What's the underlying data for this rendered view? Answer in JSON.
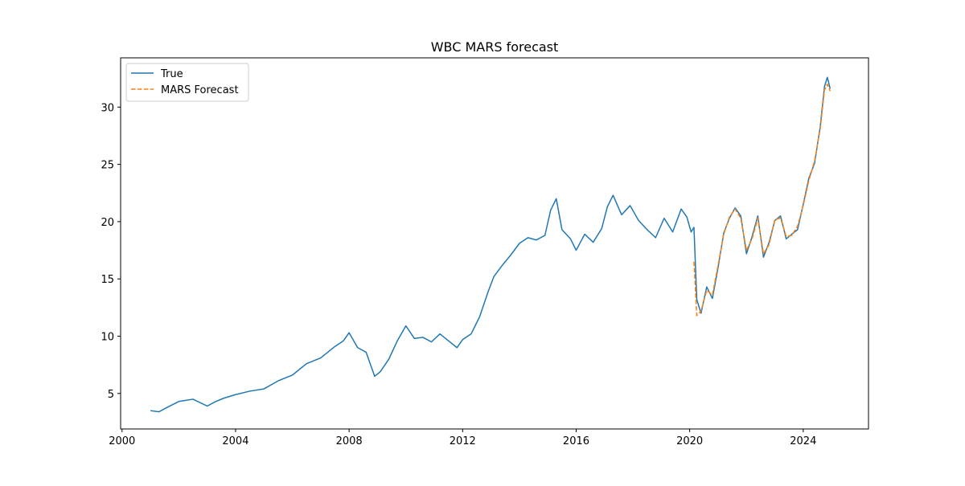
{
  "chart_data": {
    "type": "line",
    "title": "WBC MARS forecast",
    "xlabel": "",
    "ylabel": "",
    "x_ticks": [
      "2000",
      "2004",
      "2008",
      "2012",
      "2016",
      "2020",
      "2024"
    ],
    "y_ticks": [
      "5",
      "10",
      "15",
      "20",
      "25",
      "30"
    ],
    "xlim": [
      1999.95,
      2026.3
    ],
    "ylim": [
      1.9,
      34.3
    ],
    "grid": false,
    "legend_position": "top-left",
    "series": [
      {
        "name": "True",
        "color": "#1f77b4",
        "style": "solid",
        "x": [
          2001.0,
          2001.3,
          2001.6,
          2002.0,
          2002.5,
          2003.0,
          2003.3,
          2003.6,
          2004.0,
          2004.5,
          2005.0,
          2005.5,
          2006.0,
          2006.5,
          2007.0,
          2007.5,
          2007.8,
          2008.0,
          2008.3,
          2008.6,
          2008.9,
          2009.1,
          2009.4,
          2009.7,
          2010.0,
          2010.3,
          2010.6,
          2010.9,
          2011.2,
          2011.5,
          2011.8,
          2012.0,
          2012.3,
          2012.6,
          2012.9,
          2013.1,
          2013.4,
          2013.7,
          2014.0,
          2014.3,
          2014.6,
          2014.9,
          2015.1,
          2015.3,
          2015.5,
          2015.8,
          2016.0,
          2016.3,
          2016.6,
          2016.9,
          2017.1,
          2017.3,
          2017.6,
          2017.9,
          2018.2,
          2018.5,
          2018.8,
          2019.1,
          2019.4,
          2019.7,
          2019.9,
          2020.05,
          2020.15,
          2020.25,
          2020.4,
          2020.6,
          2020.8,
          2021.0,
          2021.2,
          2021.4,
          2021.6,
          2021.8,
          2022.0,
          2022.2,
          2022.4,
          2022.6,
          2022.8,
          2023.0,
          2023.2,
          2023.4,
          2023.6,
          2023.8,
          2024.0,
          2024.2,
          2024.4,
          2024.6,
          2024.75,
          2024.85,
          2024.95
        ],
        "values": [
          3.5,
          3.4,
          3.8,
          4.3,
          4.5,
          3.9,
          4.3,
          4.6,
          4.9,
          5.2,
          5.4,
          6.1,
          6.6,
          7.6,
          8.1,
          9.1,
          9.6,
          10.3,
          9.0,
          8.6,
          6.5,
          6.9,
          8.0,
          9.6,
          10.9,
          9.8,
          9.9,
          9.5,
          10.2,
          9.6,
          9.0,
          9.7,
          10.2,
          11.7,
          13.9,
          15.2,
          16.2,
          17.1,
          18.1,
          18.6,
          18.4,
          18.8,
          21.0,
          22.0,
          19.3,
          18.5,
          17.5,
          18.9,
          18.2,
          19.4,
          21.3,
          22.3,
          20.6,
          21.4,
          20.1,
          19.3,
          18.6,
          20.3,
          19.1,
          21.1,
          20.4,
          19.1,
          19.5,
          13.2,
          12.0,
          14.3,
          13.3,
          16.0,
          19.0,
          20.3,
          21.2,
          20.5,
          17.2,
          18.7,
          20.5,
          16.9,
          18.2,
          20.1,
          20.5,
          18.5,
          18.9,
          19.3,
          21.5,
          23.8,
          25.1,
          28.3,
          31.8,
          32.6,
          31.6
        ]
      },
      {
        "name": "MARS Forecast",
        "color": "#ff7f0e",
        "style": "dashed",
        "x": [
          2020.15,
          2020.25,
          2020.4,
          2020.6,
          2020.8,
          2021.0,
          2021.2,
          2021.4,
          2021.6,
          2021.8,
          2022.0,
          2022.2,
          2022.4,
          2022.6,
          2022.8,
          2023.0,
          2023.2,
          2023.4,
          2023.6,
          2023.8,
          2024.0,
          2024.2,
          2024.4,
          2024.6,
          2024.75,
          2024.85,
          2024.95
        ],
        "values": [
          16.5,
          11.8,
          12.2,
          14.0,
          13.6,
          16.2,
          18.9,
          20.4,
          21.1,
          20.3,
          17.5,
          18.5,
          20.3,
          17.2,
          18.0,
          20.2,
          20.3,
          18.7,
          18.8,
          19.6,
          21.4,
          23.6,
          25.3,
          28.1,
          31.5,
          32.0,
          31.4
        ]
      }
    ]
  }
}
